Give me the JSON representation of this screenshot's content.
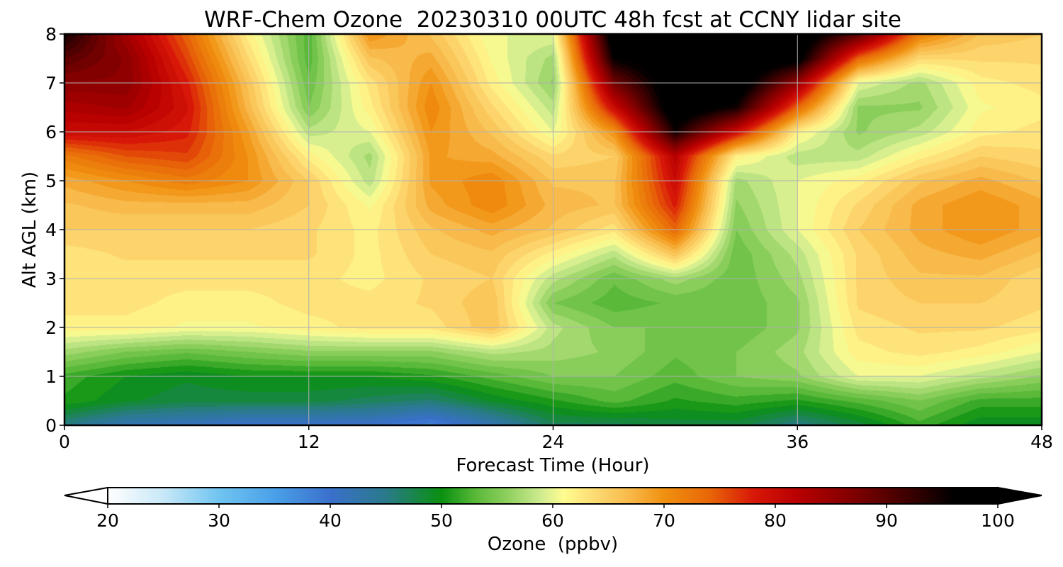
{
  "chart_data": {
    "type": "heatmap",
    "title": "WRF-Chem Ozone  20230310 00UTC 48h fcst at CCNY lidar site",
    "xlabel": "Forecast Time (Hour)",
    "ylabel": "Alt AGL (km)",
    "xlim": [
      0,
      48
    ],
    "ylim": [
      0,
      8
    ],
    "x_ticks": [
      0,
      12,
      24,
      36,
      48
    ],
    "y_ticks": [
      0,
      1,
      2,
      3,
      4,
      5,
      6,
      7,
      8
    ],
    "grid": true,
    "x": [
      0,
      3,
      6,
      9,
      12,
      15,
      18,
      21,
      24,
      27,
      30,
      33,
      36,
      39,
      42,
      45,
      48
    ],
    "y": [
      0,
      0.5,
      1,
      1.5,
      2,
      2.5,
      3,
      3.5,
      4,
      4.5,
      5,
      5.5,
      6,
      6.5,
      7,
      7.5,
      8
    ],
    "z": [
      [
        45,
        42,
        41,
        40,
        40,
        40,
        38,
        42,
        47,
        47,
        48,
        48,
        45,
        48,
        52,
        49,
        49
      ],
      [
        51,
        49,
        48,
        48,
        48,
        47,
        46,
        49,
        51,
        53,
        51,
        52,
        51,
        53,
        55,
        52,
        52
      ],
      [
        52,
        50,
        49,
        50,
        50,
        50,
        51,
        53,
        55,
        55,
        53,
        55,
        56,
        60,
        60,
        58,
        56
      ],
      [
        57,
        55,
        54,
        55,
        56,
        56,
        56,
        58,
        57,
        56,
        54,
        55,
        57,
        62,
        63,
        62,
        60
      ],
      [
        62,
        62,
        61,
        61,
        62,
        63,
        63,
        66,
        58,
        55,
        55,
        54,
        56,
        63,
        64,
        64,
        63
      ],
      [
        63,
        63,
        62,
        62,
        63,
        63,
        64,
        66,
        55,
        53,
        54,
        54,
        56,
        64,
        65,
        65,
        64
      ],
      [
        63,
        63,
        63,
        63,
        63,
        62,
        64,
        65,
        58,
        54,
        57,
        54,
        57,
        64,
        66,
        66,
        64
      ],
      [
        63,
        64,
        64,
        64,
        64,
        62,
        65,
        66,
        62,
        58,
        66,
        54,
        58,
        64,
        67,
        68,
        66
      ],
      [
        65,
        65,
        65,
        65,
        64,
        62,
        66,
        68,
        66,
        63,
        74,
        55,
        60,
        65,
        68,
        70,
        68
      ],
      [
        66,
        67,
        67,
        67,
        65,
        61,
        68,
        71,
        67,
        66,
        78,
        56,
        60,
        64,
        68,
        70,
        68
      ],
      [
        68,
        70,
        72,
        70,
        65,
        58,
        69,
        71,
        66,
        66,
        80,
        57,
        60,
        62,
        66,
        68,
        66
      ],
      [
        72,
        75,
        76,
        70,
        62,
        57,
        69,
        68,
        64,
        65,
        82,
        62,
        58,
        58,
        62,
        65,
        64
      ],
      [
        80,
        80,
        78,
        69,
        58,
        60,
        70,
        66,
        60,
        70,
        95,
        80,
        62,
        56,
        58,
        62,
        63
      ],
      [
        83,
        84,
        79,
        67,
        55,
        62,
        71,
        64,
        58,
        80,
        100,
        95,
        74,
        56,
        56,
        61,
        62
      ],
      [
        86,
        86,
        78,
        66,
        54,
        63,
        70,
        62,
        56,
        88,
        100,
        100,
        85,
        60,
        57,
        62,
        63
      ],
      [
        90,
        86,
        76,
        64,
        53,
        66,
        68,
        61,
        57,
        96,
        100,
        100,
        98,
        74,
        64,
        64,
        64
      ],
      [
        95,
        84,
        74,
        62,
        53,
        70,
        66,
        60,
        60,
        100,
        100,
        100,
        100,
        90,
        72,
        66,
        65
      ]
    ],
    "colorbar": {
      "label": "Ozone  (ppbv)",
      "min": 20,
      "max": 100,
      "ticks": [
        20,
        30,
        40,
        50,
        60,
        70,
        80,
        90,
        100
      ],
      "extend": "both",
      "colormap": [
        [
          20,
          "#ffffff"
        ],
        [
          25,
          "#c8e8f8"
        ],
        [
          30,
          "#70c4f0"
        ],
        [
          35,
          "#4aa0e8"
        ],
        [
          40,
          "#3a70cc"
        ],
        [
          45,
          "#2a7a8a"
        ],
        [
          50,
          "#0a9010"
        ],
        [
          53,
          "#58b838"
        ],
        [
          56,
          "#90d060"
        ],
        [
          59,
          "#d0ec90"
        ],
        [
          61,
          "#fffc90"
        ],
        [
          64,
          "#fcd870"
        ],
        [
          67,
          "#f8b848"
        ],
        [
          70,
          "#f09010"
        ],
        [
          74,
          "#e86808"
        ],
        [
          78,
          "#d81808"
        ],
        [
          82,
          "#b80000"
        ],
        [
          87,
          "#800000"
        ],
        [
          92,
          "#3c0000"
        ],
        [
          96,
          "#000000"
        ],
        [
          100,
          "#000000"
        ]
      ]
    }
  }
}
